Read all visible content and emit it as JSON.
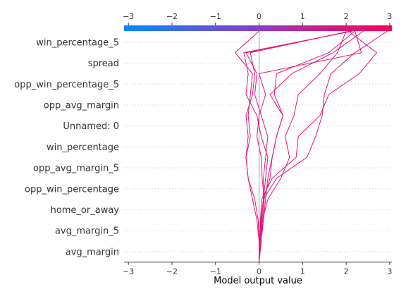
{
  "chart_data": {
    "type": "line",
    "xlabel": "Model output value",
    "xlim": [
      -3.1,
      3.05
    ],
    "ticks": [
      -3,
      -2,
      -1,
      0,
      1,
      2,
      3
    ],
    "tick_labels": [
      "−3",
      "−2",
      "−1",
      "0",
      "1",
      "2",
      "3"
    ],
    "base_value": 0,
    "features": [
      "win_percentage_5",
      "spread",
      "opp_win_percentage_5",
      "opp_avg_margin",
      "Unnamed: 0",
      "win_percentage",
      "opp_avg_margin_5",
      "opp_win_percentage",
      "home_or_away",
      "avg_margin_5",
      "avg_margin"
    ],
    "colorbar": {
      "from": "#008bfb",
      "mid": "#8f3cc0",
      "to": "#ff0052"
    },
    "line_color": "#e0147a",
    "series": [
      {
        "values": [
          0,
          0.02,
          0.05,
          0.1,
          0.4,
          1.1,
          1.3,
          1.45,
          1.5,
          1.65,
          2.2,
          2.95
        ]
      },
      {
        "values": [
          0,
          0.01,
          0.03,
          0.06,
          0.3,
          0.85,
          0.9,
          1.4,
          1.6,
          2.3,
          2.7,
          2.05
        ]
      },
      {
        "values": [
          0,
          0.02,
          0.08,
          0.2,
          0.5,
          0.7,
          0.6,
          0.8,
          0.9,
          1.4,
          1.8,
          2.0
        ]
      },
      {
        "values": [
          0,
          0.02,
          0.05,
          0.1,
          0.25,
          0.3,
          0.4,
          0.55,
          0.35,
          0.4,
          1.6,
          2.2
        ]
      },
      {
        "values": [
          0,
          0.05,
          0.1,
          0.15,
          0.2,
          0.3,
          0.4,
          0.55,
          0.25,
          0.75,
          1.7,
          2.4
        ]
      },
      {
        "values": [
          0,
          0.05,
          0.08,
          0.12,
          0.07,
          0.05,
          -0.05,
          0.0,
          0.15,
          0.0,
          2.35,
          2.2
        ]
      },
      {
        "values": [
          0,
          0.03,
          0.04,
          0.1,
          0.1,
          0.15,
          0.2,
          0.05,
          -0.1,
          -0.05,
          -0.3,
          2.15
        ]
      },
      {
        "values": [
          0,
          0.0,
          -0.02,
          -0.1,
          -0.25,
          -0.3,
          -0.2,
          -0.25,
          -0.2,
          -0.15,
          -0.55,
          0.0
        ]
      },
      {
        "values": [
          0,
          0.02,
          0.06,
          0.1,
          0.15,
          0.2,
          0.05,
          -0.05,
          -0.3,
          -0.25,
          -0.35,
          2.15
        ]
      },
      {
        "values": [
          0,
          0.0,
          -0.05,
          -0.15,
          -0.25,
          -0.3,
          -0.25,
          -0.3,
          -0.15,
          -0.1,
          -0.2,
          2.1
        ]
      }
    ]
  }
}
